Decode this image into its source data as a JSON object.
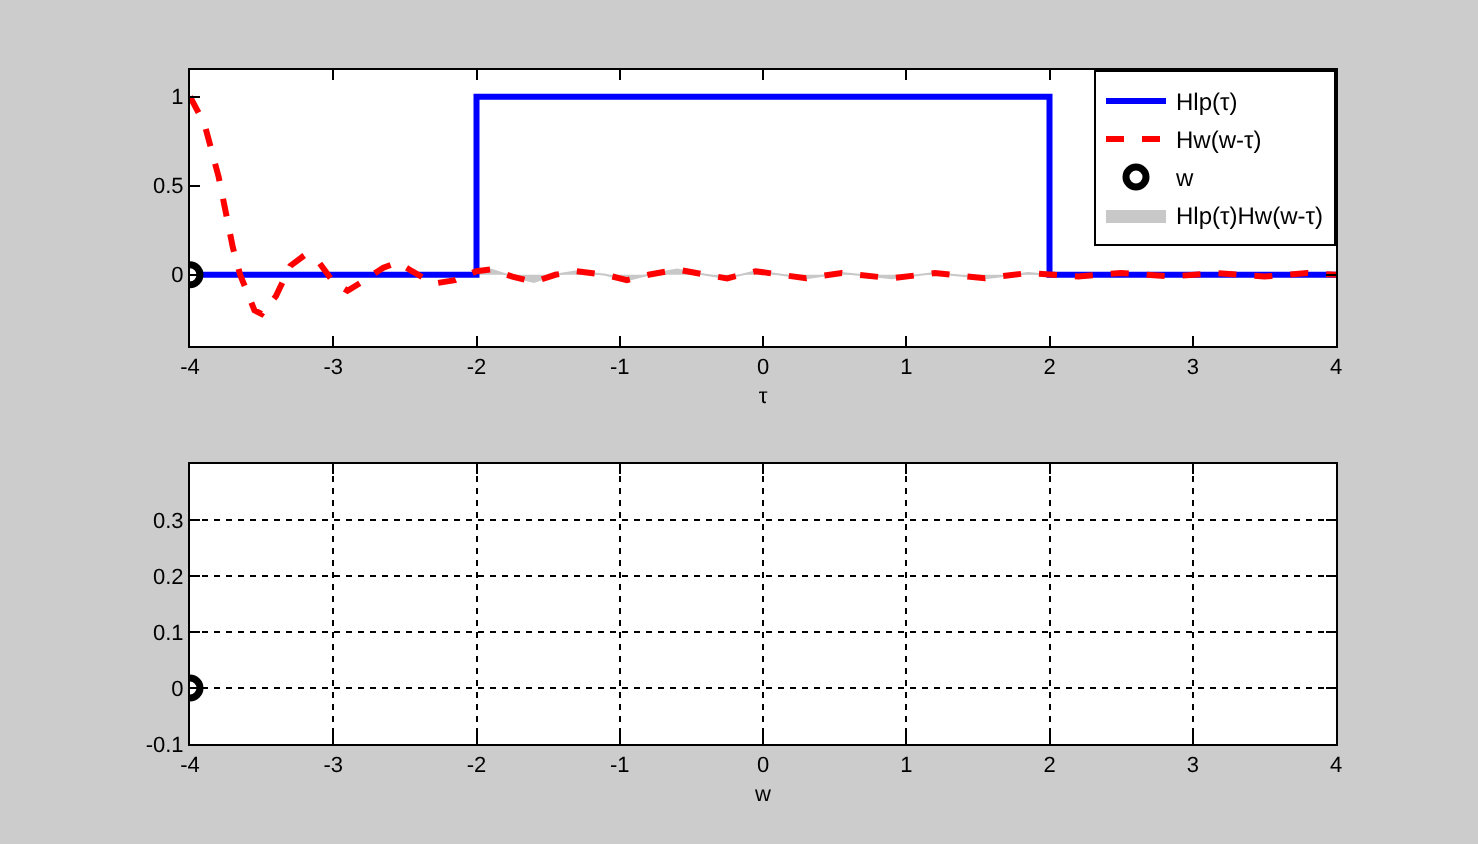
{
  "chart_data": [
    {
      "type": "line",
      "xlabel": "τ",
      "xlim": [
        -4,
        4
      ],
      "xticks": [
        -4,
        -3,
        -2,
        -1,
        0,
        1,
        2,
        3,
        4
      ],
      "ylim": [
        -0.4,
        1.15
      ],
      "yticks": [
        0,
        0.5,
        1
      ],
      "grid": false,
      "legend": "top right",
      "series": [
        {
          "name": "Hlp(τ)",
          "color": "#0000ff",
          "line_style": "solid",
          "x": [
            -4,
            -2,
            -2,
            2,
            2,
            4
          ],
          "values": [
            0,
            0,
            1,
            1,
            0,
            0
          ]
        },
        {
          "name": "Hw(w-τ)",
          "color": "#ff0000",
          "line_style": "dashed",
          "x": [
            -4,
            -3.9,
            -3.8,
            -3.7,
            -3.65,
            -3.55,
            -3.5,
            -3.4,
            -3.3,
            -3.2,
            -3.1,
            -3.0,
            -2.9,
            -2.8,
            -2.65,
            -2.55,
            -2.45,
            -2.3,
            -2.15,
            -2.0,
            -1.9,
            -1.75,
            -1.6,
            -1.45,
            -1.3,
            -1.1,
            -0.95,
            -0.8,
            -0.6,
            -0.4,
            -0.25,
            -0.05,
            0.3,
            0.55,
            0.9,
            1.2,
            1.55,
            1.85,
            2.2,
            2.5,
            2.85,
            3.15,
            3.5,
            3.8,
            4
          ],
          "values": [
            1.0,
            0.85,
            0.55,
            0.15,
            0,
            -0.2,
            -0.22,
            -0.12,
            0.05,
            0.11,
            0.07,
            -0.04,
            -0.09,
            -0.04,
            0.04,
            0.07,
            0.02,
            -0.05,
            -0.03,
            0.02,
            0.03,
            -0.01,
            -0.04,
            0,
            0.02,
            0,
            -0.03,
            0,
            0.03,
            0,
            -0.02,
            0.02,
            -0.02,
            0.01,
            -0.02,
            0.01,
            -0.02,
            0.01,
            -0.01,
            0.01,
            -0.01,
            0.01,
            -0.01,
            0.01,
            0
          ]
        },
        {
          "name": "w",
          "type": "scatter",
          "color": "#000000",
          "marker": "circle",
          "x": [
            -4
          ],
          "values": [
            0
          ]
        },
        {
          "name": "Hlp(τ)Hw(w-τ)",
          "type": "area",
          "color": "#c8c8c8",
          "x": [
            -2,
            -2,
            -1.9,
            -1.75,
            -1.6,
            -1.45,
            -1.3,
            -1.1,
            -0.95,
            -0.8,
            -0.6,
            -0.4,
            -0.25,
            -0.05,
            0.3,
            0.55,
            0.9,
            1.2,
            1.55,
            1.85,
            2
          ],
          "values": [
            0,
            0.02,
            0.03,
            -0.01,
            -0.04,
            0,
            0.02,
            0,
            -0.03,
            0,
            0.03,
            0,
            -0.02,
            0.02,
            -0.02,
            0.01,
            -0.02,
            0.01,
            -0.02,
            0.01,
            0
          ]
        }
      ]
    },
    {
      "type": "scatter",
      "xlabel": "w",
      "xlim": [
        -4,
        4
      ],
      "xticks": [
        -4,
        -3,
        -2,
        -1,
        0,
        1,
        2,
        3,
        4
      ],
      "ylim": [
        -0.1,
        0.4
      ],
      "yticks": [
        -0.1,
        0,
        0.1,
        0.2,
        0.3
      ],
      "grid": true,
      "marker": "circle",
      "series": [
        {
          "color": "#000000",
          "x": [
            -4
          ],
          "values": [
            0
          ]
        }
      ]
    }
  ]
}
